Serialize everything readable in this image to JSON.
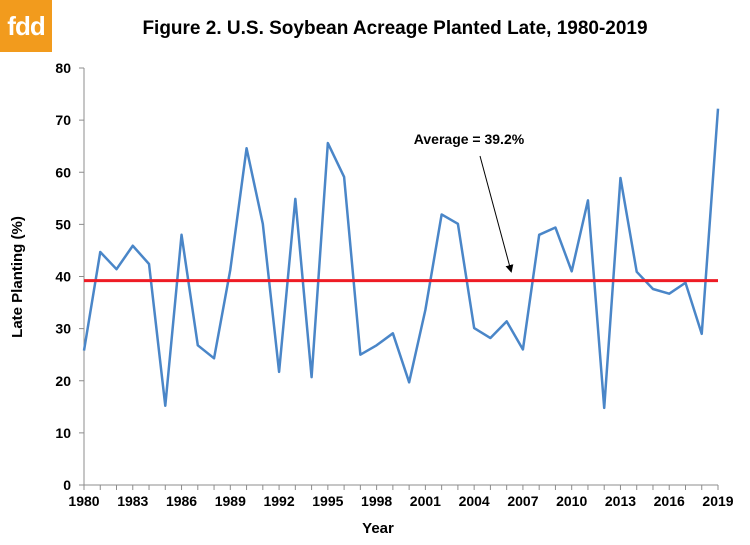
{
  "logo": {
    "text": "fdd",
    "color": "#f29b1d"
  },
  "chart_data": {
    "type": "line",
    "title": "Figure 2. U.S. Soybean Acreage Planted Late, 1980-2019",
    "xlabel": "Year",
    "ylabel": "Late Planting (%)",
    "ylim": [
      0,
      80
    ],
    "yticks": [
      "0",
      "10",
      "20",
      "30",
      "40",
      "50",
      "60",
      "70",
      "80"
    ],
    "xlim": [
      1980,
      2019
    ],
    "xticks": [
      "1980",
      "1983",
      "1986",
      "1989",
      "1992",
      "1995",
      "1998",
      "2001",
      "2004",
      "2007",
      "2010",
      "2013",
      "2016",
      "2019"
    ],
    "grid": false,
    "x": [
      1980,
      1981,
      1982,
      1983,
      1984,
      1985,
      1986,
      1987,
      1988,
      1989,
      1990,
      1991,
      1992,
      1993,
      1994,
      1995,
      1996,
      1997,
      1998,
      1999,
      2000,
      2001,
      2002,
      2003,
      2004,
      2005,
      2006,
      2007,
      2008,
      2009,
      2010,
      2011,
      2012,
      2013,
      2014,
      2015,
      2016,
      2017,
      2018,
      2019
    ],
    "series": [
      {
        "values": [
          25.8,
          44.7,
          41.4,
          45.9,
          42.4,
          15.2,
          48.0,
          26.8,
          24.3,
          41.3,
          64.6,
          50.1,
          21.7,
          54.9,
          20.7,
          65.6,
          59.1,
          25.0,
          26.8,
          29.1,
          19.7,
          33.6,
          51.9,
          50.1,
          30.1,
          28.2,
          31.4,
          26.0,
          48.0,
          49.4,
          41.0,
          54.6,
          14.8,
          58.9,
          40.9,
          37.6,
          36.7,
          38.8,
          29.0,
          72.2
        ],
        "color": "#4a86c8"
      }
    ],
    "reference_line": {
      "value": 39.2,
      "color": "#ee1c25"
    },
    "annotation": "Average = 39.2%"
  }
}
